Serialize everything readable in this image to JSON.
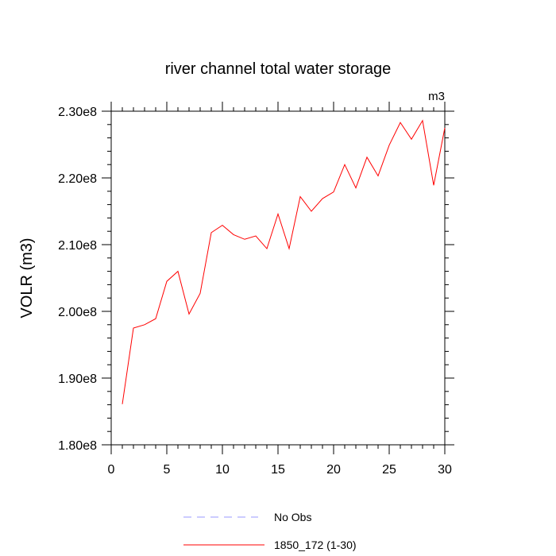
{
  "chart_data": {
    "type": "line",
    "title": "river channel total water storage",
    "units_label": "m3",
    "ylabel": "VOLR  (m3)",
    "xlabel": "",
    "xlim": [
      0,
      30
    ],
    "ylim": [
      180000000,
      230000000
    ],
    "x_major_ticks": [
      0,
      5,
      10,
      15,
      20,
      25,
      30
    ],
    "x_tick_labels": [
      "0",
      "5",
      "10",
      "15",
      "20",
      "25",
      "30"
    ],
    "x_minor_step": 1,
    "y_major_ticks": [
      180000000,
      190000000,
      200000000,
      210000000,
      220000000,
      230000000
    ],
    "y_tick_labels": [
      "1.80e8",
      "1.90e8",
      "2.00e8",
      "2.10e8",
      "2.20e8",
      "2.30e8"
    ],
    "y_minor_step": 2000000,
    "grid": false,
    "legend_position": "bottom-center",
    "series": [
      {
        "name": "No Obs",
        "color": "#9999ff",
        "style": "dashed",
        "x": [],
        "values": []
      },
      {
        "name": "1850_172 (1-30)",
        "color": "#ff0000",
        "style": "solid",
        "x": [
          1,
          2,
          3,
          4,
          5,
          6,
          7,
          8,
          9,
          10,
          11,
          12,
          13,
          14,
          15,
          16,
          17,
          18,
          19,
          20,
          21,
          22,
          23,
          24,
          25,
          26,
          27,
          28,
          29,
          30
        ],
        "values": [
          186100000,
          197500000,
          198000000,
          198900000,
          204500000,
          206000000,
          199600000,
          202700000,
          211800000,
          212900000,
          211500000,
          210800000,
          211300000,
          209400000,
          214600000,
          209400000,
          217200000,
          215000000,
          216900000,
          217900000,
          222000000,
          218500000,
          223100000,
          220300000,
          224900000,
          228300000,
          225800000,
          228600000,
          218900000,
          227500000
        ]
      }
    ]
  }
}
